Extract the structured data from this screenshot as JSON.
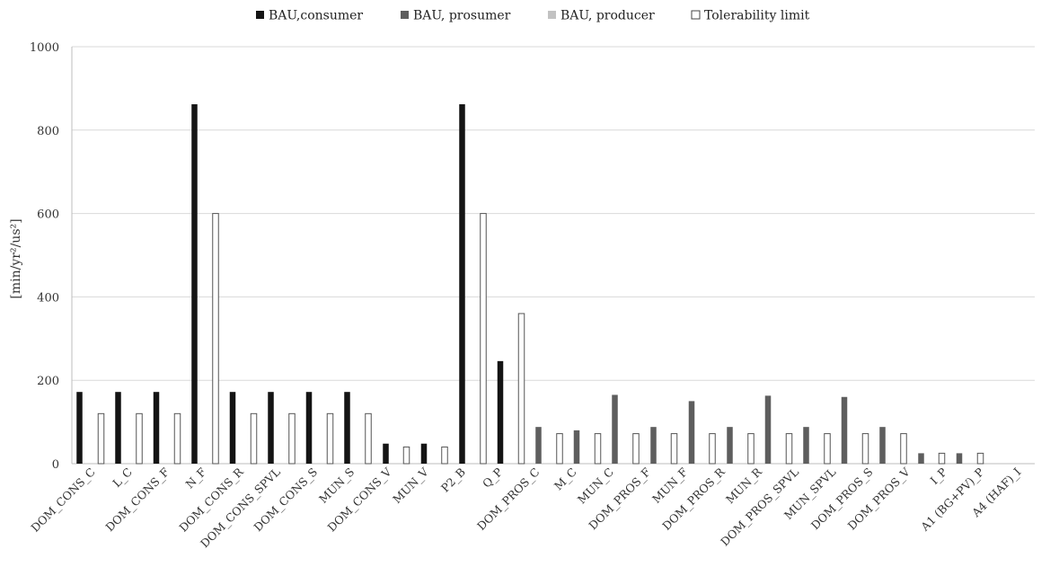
{
  "chart_data": {
    "type": "bar",
    "ylabel": "[min/yr²/us²]",
    "ylim": [
      0,
      1000
    ],
    "yticks": [
      0,
      200,
      400,
      600,
      800,
      1000
    ],
    "grid": true,
    "legend_position": "top",
    "legend": [
      {
        "name": "BAU,consumer",
        "color": "#141414",
        "hollow": false
      },
      {
        "name": "BAU, prosumer",
        "color": "#5e5e5e",
        "hollow": false
      },
      {
        "name": "BAU, producer",
        "color": "#c2c2c2",
        "hollow": false
      },
      {
        "name": "Tolerability limit",
        "color": "#ffffff",
        "hollow": true
      }
    ],
    "categories": [
      "DOM_CONS_C",
      "L_C",
      "DOM_CONS_F",
      "N_F",
      "DOM_CONS_R",
      "DOM_CONS_SPVL",
      "DOM_CONS_S",
      "MUN_S",
      "DOM_CONS_V",
      "MUN_V",
      "P2_B",
      "Q_P",
      "DOM_PROS_C",
      "M_C",
      "MUN_C",
      "DOM_PROS_F",
      "MUN_F",
      "DOM_PROS_R",
      "MUN_R",
      "DOM_PROS_SPVL",
      "MUN_SPVL",
      "DOM_PROS_S",
      "DOM_PROS_V",
      "I_P",
      "A1 (BG+PV)_P",
      "A4 (HAF)_I"
    ],
    "bars": [
      {
        "x": 88.5,
        "value": 172,
        "series": 0
      },
      {
        "x": 112.5,
        "value": 120,
        "series": 3
      },
      {
        "x": 131.5,
        "value": 172,
        "series": 0
      },
      {
        "x": 155.0,
        "value": 120,
        "series": 3
      },
      {
        "x": 174.0,
        "value": 172,
        "series": 0
      },
      {
        "x": 197.5,
        "value": 120,
        "series": 3
      },
      {
        "x": 216.5,
        "value": 862,
        "series": 0
      },
      {
        "x": 240.0,
        "value": 600,
        "series": 3
      },
      {
        "x": 259.0,
        "value": 172,
        "series": 0
      },
      {
        "x": 282.5,
        "value": 120,
        "series": 3
      },
      {
        "x": 301.5,
        "value": 172,
        "series": 0
      },
      {
        "x": 325.0,
        "value": 120,
        "series": 3
      },
      {
        "x": 344.0,
        "value": 172,
        "series": 0
      },
      {
        "x": 367.5,
        "value": 120,
        "series": 3
      },
      {
        "x": 386.5,
        "value": 172,
        "series": 0
      },
      {
        "x": 410.0,
        "value": 120,
        "series": 3
      },
      {
        "x": 429.5,
        "value": 48,
        "series": 0
      },
      {
        "x": 452.5,
        "value": 40,
        "series": 3
      },
      {
        "x": 472.0,
        "value": 48,
        "series": 0
      },
      {
        "x": 495.0,
        "value": 40,
        "series": 3
      },
      {
        "x": 514.5,
        "value": 862,
        "series": 0
      },
      {
        "x": 538.0,
        "value": 600,
        "series": 3
      },
      {
        "x": 557.0,
        "value": 246,
        "series": 0
      },
      {
        "x": 580.5,
        "value": 360,
        "series": 3
      },
      {
        "x": 599.5,
        "value": 88,
        "series": 1
      },
      {
        "x": 623.0,
        "value": 72,
        "series": 3
      },
      {
        "x": 642.0,
        "value": 80,
        "series": 1
      },
      {
        "x": 665.5,
        "value": 72,
        "series": 3
      },
      {
        "x": 684.5,
        "value": 165,
        "series": 1
      },
      {
        "x": 708.0,
        "value": 72,
        "series": 3
      },
      {
        "x": 727.5,
        "value": 88,
        "series": 1
      },
      {
        "x": 750.5,
        "value": 72,
        "series": 3
      },
      {
        "x": 770.0,
        "value": 150,
        "series": 1
      },
      {
        "x": 793.0,
        "value": 72,
        "series": 3
      },
      {
        "x": 812.5,
        "value": 88,
        "series": 1
      },
      {
        "x": 836.0,
        "value": 72,
        "series": 3
      },
      {
        "x": 855.0,
        "value": 163,
        "series": 1
      },
      {
        "x": 878.5,
        "value": 72,
        "series": 3
      },
      {
        "x": 897.5,
        "value": 88,
        "series": 1
      },
      {
        "x": 921.0,
        "value": 72,
        "series": 3
      },
      {
        "x": 940.0,
        "value": 160,
        "series": 1
      },
      {
        "x": 963.5,
        "value": 72,
        "series": 3
      },
      {
        "x": 982.5,
        "value": 88,
        "series": 1
      },
      {
        "x": 1006.0,
        "value": 72,
        "series": 3
      },
      {
        "x": 1025.5,
        "value": 25,
        "series": 1
      },
      {
        "x": 1048.5,
        "value": 25,
        "series": 3
      },
      {
        "x": 1068.0,
        "value": 25,
        "series": 1
      },
      {
        "x": 1091.5,
        "value": 25,
        "series": 3
      }
    ]
  }
}
